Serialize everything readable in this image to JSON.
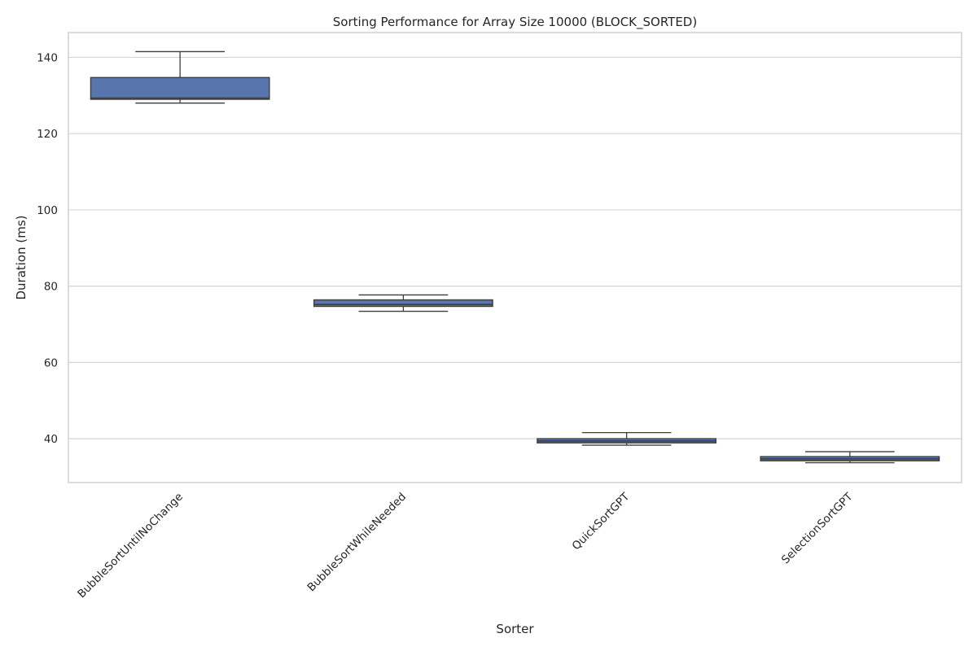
{
  "chart_data": {
    "type": "box",
    "title": "Sorting Performance for Array Size 10000 (BLOCK_SORTED)",
    "xlabel": "Sorter",
    "ylabel": "Duration (ms)",
    "ylim": [
      28.5,
      146.5
    ],
    "yticks": [
      40,
      60,
      80,
      100,
      120,
      140
    ],
    "grid": true,
    "legend": "none",
    "box_color": "#5875ad",
    "line_color": "#3d3d3d",
    "categories": [
      "BubbleSortUntilNoChange",
      "BubbleSortWhileNeeded",
      "QuickSortGPT",
      "SelectionSortGPT"
    ],
    "boxes": [
      {
        "category": "BubbleSortUntilNoChange",
        "whisker_low": 128.0,
        "q1": 129.0,
        "median": 129.3,
        "q3": 134.7,
        "whisker_high": 141.5
      },
      {
        "category": "BubbleSortWhileNeeded",
        "whisker_low": 73.4,
        "q1": 74.7,
        "median": 75.2,
        "q3": 76.4,
        "whisker_high": 77.7
      },
      {
        "category": "QuickSortGPT",
        "whisker_low": 38.3,
        "q1": 38.9,
        "median": 39.4,
        "q3": 40.0,
        "whisker_high": 41.6
      },
      {
        "category": "SelectionSortGPT",
        "whisker_low": 33.7,
        "q1": 34.2,
        "median": 34.7,
        "q3": 35.3,
        "whisker_high": 36.6
      }
    ]
  }
}
